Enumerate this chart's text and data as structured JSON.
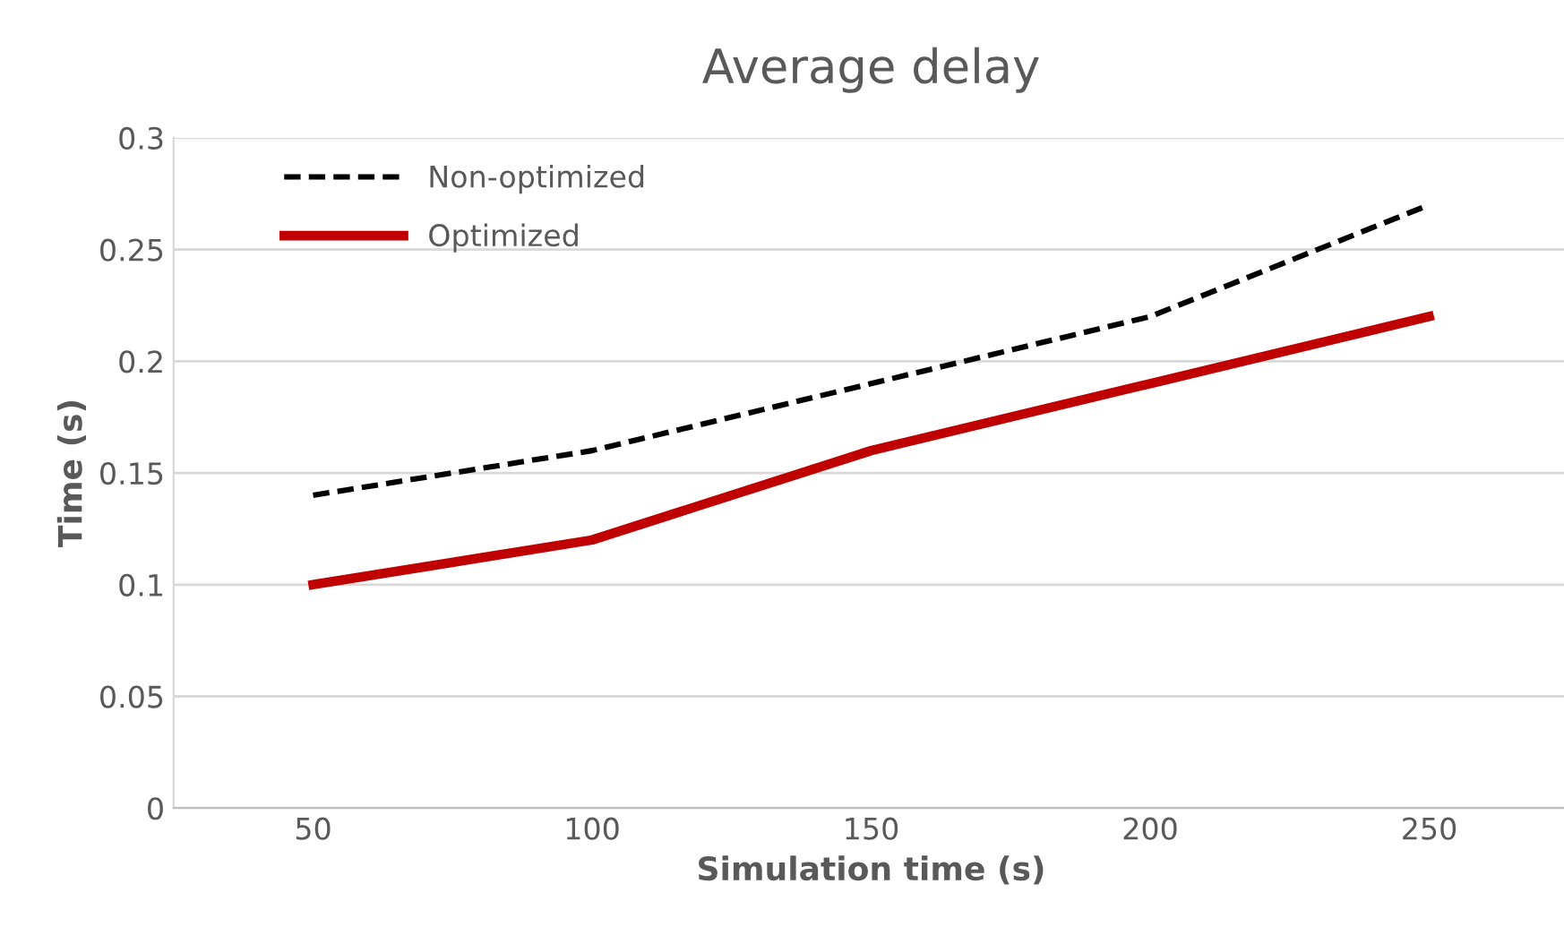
{
  "chart_data": {
    "type": "line",
    "title": "Average delay",
    "xlabel": "Simulation time (s)",
    "ylabel": "Time (s)",
    "categories": [
      "50",
      "100",
      "150",
      "200",
      "250"
    ],
    "series": [
      {
        "name": "Non-optimized",
        "color": "#000000",
        "line_style": "dashed",
        "values": [
          0.14,
          0.16,
          0.19,
          0.22,
          0.27
        ]
      },
      {
        "name": "Optimized",
        "color": "#c00000",
        "line_style": "solid",
        "values": [
          0.1,
          0.12,
          0.16,
          0.19,
          0.22
        ]
      }
    ],
    "ylim": [
      0,
      0.3
    ],
    "yticks": [
      0,
      0.05,
      0.1,
      0.15,
      0.2,
      0.25,
      0.3
    ],
    "grid": "y",
    "legend": "top left",
    "marker": "none"
  }
}
